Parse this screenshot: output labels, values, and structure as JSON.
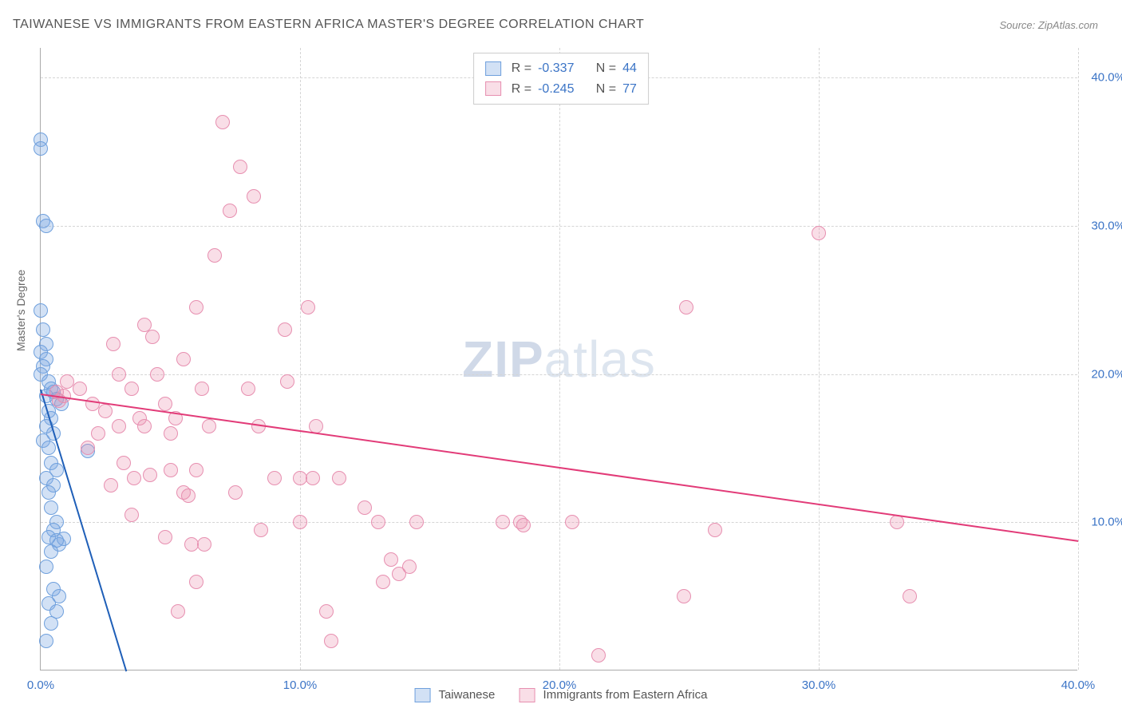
{
  "title": "TAIWANESE VS IMMIGRANTS FROM EASTERN AFRICA MASTER'S DEGREE CORRELATION CHART",
  "source": "Source: ZipAtlas.com",
  "watermark": {
    "zip": "ZIP",
    "atlas": "atlas"
  },
  "y_axis_label": "Master's Degree",
  "chart": {
    "type": "scatter",
    "xlim": [
      0,
      40
    ],
    "ylim": [
      0,
      42
    ],
    "x_ticks": [
      0,
      10,
      20,
      30,
      40
    ],
    "y_ticks": [
      10,
      20,
      30,
      40
    ],
    "x_tick_labels": [
      "0.0%",
      "10.0%",
      "20.0%",
      "30.0%",
      "40.0%"
    ],
    "y_tick_labels": [
      "10.0%",
      "20.0%",
      "30.0%",
      "40.0%"
    ],
    "grid_color": "#d5d5d5",
    "axis_color": "#aaaaaa",
    "background": "#ffffff",
    "marker_size": 18,
    "series": [
      {
        "name": "Taiwanese",
        "key": "taiwanese",
        "fill": "rgba(125,170,225,0.35)",
        "stroke": "#6fa0dd",
        "trend_color": "#1f5fb8",
        "trend": {
          "x1": 0,
          "y1": 19.0,
          "x2": 3.3,
          "y2": 0
        },
        "r_value": "-0.337",
        "n_value": "44",
        "points": [
          [
            0.0,
            35.8
          ],
          [
            0.0,
            35.2
          ],
          [
            0.1,
            30.3
          ],
          [
            0.2,
            30.0
          ],
          [
            0.0,
            24.3
          ],
          [
            0.1,
            23.0
          ],
          [
            0.2,
            22.0
          ],
          [
            0.0,
            21.5
          ],
          [
            0.2,
            21.0
          ],
          [
            0.1,
            20.5
          ],
          [
            0.0,
            20.0
          ],
          [
            0.3,
            19.5
          ],
          [
            0.4,
            19.0
          ],
          [
            0.5,
            18.8
          ],
          [
            0.2,
            18.5
          ],
          [
            0.6,
            18.3
          ],
          [
            0.8,
            18.0
          ],
          [
            0.3,
            17.5
          ],
          [
            0.4,
            17.0
          ],
          [
            0.2,
            16.5
          ],
          [
            0.5,
            16.0
          ],
          [
            0.1,
            15.5
          ],
          [
            1.8,
            14.8
          ],
          [
            0.3,
            15.0
          ],
          [
            0.4,
            14.0
          ],
          [
            0.6,
            13.5
          ],
          [
            0.2,
            13.0
          ],
          [
            0.5,
            12.5
          ],
          [
            0.3,
            12.0
          ],
          [
            0.4,
            11.0
          ],
          [
            0.6,
            10.0
          ],
          [
            0.5,
            9.5
          ],
          [
            0.3,
            9.0
          ],
          [
            0.7,
            8.5
          ],
          [
            0.9,
            8.9
          ],
          [
            0.4,
            8.0
          ],
          [
            0.2,
            7.0
          ],
          [
            0.5,
            5.5
          ],
          [
            0.7,
            5.0
          ],
          [
            0.3,
            4.5
          ],
          [
            0.4,
            3.2
          ],
          [
            0.2,
            2.0
          ],
          [
            0.6,
            4.0
          ],
          [
            0.6,
            8.8
          ]
        ]
      },
      {
        "name": "Immigrants from Eastern Africa",
        "key": "immigrants",
        "fill": "rgba(235,145,175,0.30)",
        "stroke": "#e78fb0",
        "trend_color": "#e23b78",
        "trend": {
          "x1": 0,
          "y1": 18.7,
          "x2": 40,
          "y2": 8.8
        },
        "r_value": "-0.245",
        "n_value": "77",
        "points": [
          [
            7.0,
            37.0
          ],
          [
            7.7,
            34.0
          ],
          [
            8.2,
            32.0
          ],
          [
            7.3,
            31.0
          ],
          [
            30.0,
            29.5
          ],
          [
            6.7,
            28.0
          ],
          [
            24.9,
            24.5
          ],
          [
            6.0,
            24.5
          ],
          [
            10.3,
            24.5
          ],
          [
            4.0,
            23.3
          ],
          [
            2.8,
            22.0
          ],
          [
            4.3,
            22.5
          ],
          [
            9.4,
            23.0
          ],
          [
            5.5,
            21.0
          ],
          [
            3.0,
            20.0
          ],
          [
            4.5,
            20.0
          ],
          [
            1.0,
            19.5
          ],
          [
            1.5,
            19.0
          ],
          [
            0.6,
            18.8
          ],
          [
            0.9,
            18.5
          ],
          [
            0.7,
            18.2
          ],
          [
            2.0,
            18.0
          ],
          [
            3.5,
            19.0
          ],
          [
            6.2,
            19.0
          ],
          [
            8.0,
            19.0
          ],
          [
            9.5,
            19.5
          ],
          [
            4.8,
            18.0
          ],
          [
            2.5,
            17.5
          ],
          [
            3.8,
            17.0
          ],
          [
            5.2,
            17.0
          ],
          [
            2.2,
            16.0
          ],
          [
            3.0,
            16.5
          ],
          [
            4.0,
            16.5
          ],
          [
            5.0,
            16.0
          ],
          [
            6.5,
            16.5
          ],
          [
            8.4,
            16.5
          ],
          [
            10.6,
            16.5
          ],
          [
            1.8,
            15.0
          ],
          [
            3.2,
            14.0
          ],
          [
            5.0,
            13.5
          ],
          [
            6.0,
            13.5
          ],
          [
            3.6,
            13.0
          ],
          [
            4.2,
            13.2
          ],
          [
            10.5,
            13.0
          ],
          [
            10.0,
            13.0
          ],
          [
            5.5,
            12.0
          ],
          [
            7.5,
            12.0
          ],
          [
            9.0,
            13.0
          ],
          [
            11.5,
            13.0
          ],
          [
            12.5,
            11.0
          ],
          [
            13.0,
            10.0
          ],
          [
            14.5,
            10.0
          ],
          [
            14.2,
            7.0
          ],
          [
            13.5,
            7.5
          ],
          [
            13.8,
            6.5
          ],
          [
            13.2,
            6.0
          ],
          [
            11.0,
            4.0
          ],
          [
            11.2,
            2.0
          ],
          [
            17.8,
            10.0
          ],
          [
            18.5,
            10.0
          ],
          [
            18.6,
            9.8
          ],
          [
            20.5,
            10.0
          ],
          [
            26.0,
            9.5
          ],
          [
            21.5,
            1.0
          ],
          [
            24.8,
            5.0
          ],
          [
            33.5,
            5.0
          ],
          [
            33.0,
            10.0
          ],
          [
            5.8,
            8.5
          ],
          [
            6.3,
            8.5
          ],
          [
            8.5,
            9.5
          ],
          [
            10.0,
            10.0
          ],
          [
            6.0,
            6.0
          ],
          [
            5.7,
            11.8
          ],
          [
            3.5,
            10.5
          ],
          [
            4.8,
            9.0
          ],
          [
            5.3,
            4.0
          ],
          [
            2.7,
            12.5
          ]
        ]
      }
    ]
  },
  "legend_stats": {
    "r_label": "R =",
    "n_label": "N ="
  },
  "legend_bottom": {
    "item1": "Taiwanese",
    "item2": "Immigrants from Eastern Africa"
  }
}
